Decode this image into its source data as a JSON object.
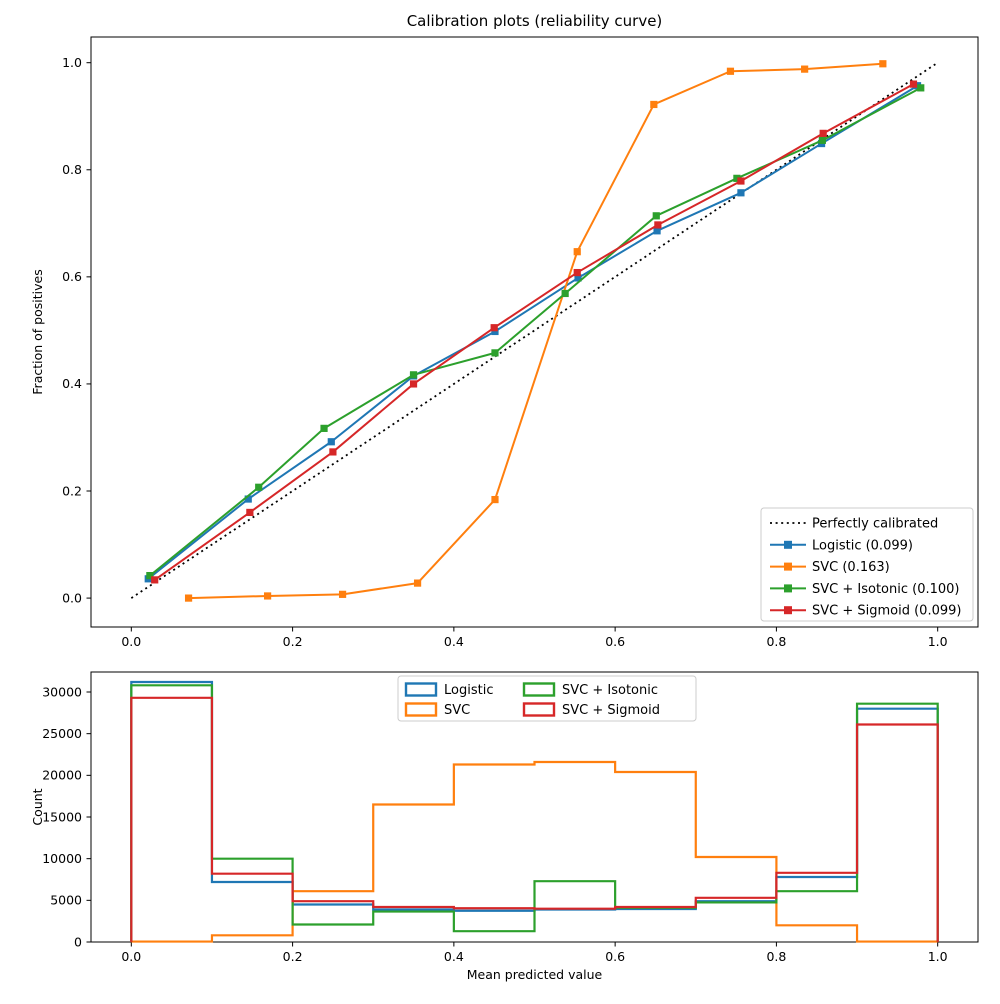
{
  "window": {
    "background": "#ffffff"
  },
  "chart_data": [
    {
      "id": "calibration-curve",
      "type": "line",
      "title": "Calibration plots  (reliability curve)",
      "xlabel": "",
      "ylabel": "Fraction of positives",
      "xlim": [
        -0.05,
        1.05
      ],
      "ylim": [
        -0.054,
        1.048
      ],
      "xticks": [
        0.0,
        0.2,
        0.4,
        0.6,
        0.8,
        1.0
      ],
      "xtick_labels": [
        "0.0",
        "0.2",
        "0.4",
        "0.6",
        "0.8",
        "1.0"
      ],
      "yticks": [
        0.0,
        0.2,
        0.4,
        0.6,
        0.8,
        1.0
      ],
      "ytick_labels": [
        "0.0",
        "0.2",
        "0.4",
        "0.6",
        "0.8",
        "1.0"
      ],
      "grid": false,
      "legend_position": "lower right",
      "reference": {
        "label": "Perfectly calibrated",
        "color": "#000000",
        "style": "dotted",
        "x": [
          0.0,
          1.0
        ],
        "y": [
          0.0,
          1.0
        ]
      },
      "series": [
        {
          "name": "Logistic (0.099)",
          "color": "#1f77b4",
          "marker": "square",
          "x": [
            0.021,
            0.145,
            0.248,
            0.35,
            0.451,
            0.554,
            0.652,
            0.756,
            0.856,
            0.975
          ],
          "y": [
            0.036,
            0.185,
            0.292,
            0.415,
            0.498,
            0.598,
            0.686,
            0.757,
            0.849,
            0.957
          ]
        },
        {
          "name": "SVC (0.163)",
          "color": "#ff7f0e",
          "marker": "square",
          "x": [
            0.071,
            0.169,
            0.262,
            0.355,
            0.451,
            0.553,
            0.648,
            0.743,
            0.835,
            0.932
          ],
          "y": [
            0.0,
            0.004,
            0.007,
            0.028,
            0.184,
            0.647,
            0.922,
            0.984,
            0.988,
            0.998
          ]
        },
        {
          "name": "SVC + Isotonic (0.100)",
          "color": "#2ca02c",
          "marker": "square",
          "x": [
            0.023,
            0.158,
            0.239,
            0.35,
            0.451,
            0.538,
            0.651,
            0.751,
            0.857,
            0.979
          ],
          "y": [
            0.042,
            0.207,
            0.317,
            0.417,
            0.458,
            0.569,
            0.714,
            0.784,
            0.855,
            0.953
          ]
        },
        {
          "name": "SVC + Sigmoid (0.099)",
          "color": "#d62728",
          "marker": "square",
          "x": [
            0.029,
            0.147,
            0.25,
            0.35,
            0.45,
            0.553,
            0.653,
            0.756,
            0.858,
            0.97
          ],
          "y": [
            0.034,
            0.16,
            0.273,
            0.4,
            0.505,
            0.608,
            0.697,
            0.779,
            0.868,
            0.96
          ]
        }
      ]
    },
    {
      "id": "predicted-value-histogram",
      "type": "bar",
      "style": "step-outline-histogram",
      "title": "",
      "xlabel": "Mean predicted value",
      "ylabel": "Count",
      "xlim": [
        -0.05,
        1.05
      ],
      "ylim": [
        0,
        32400
      ],
      "bin_edges": [
        0.0,
        0.1,
        0.2,
        0.3,
        0.4,
        0.5,
        0.6,
        0.7,
        0.8,
        0.9,
        1.0
      ],
      "xticks": [
        0.0,
        0.2,
        0.4,
        0.6,
        0.8,
        1.0
      ],
      "xtick_labels": [
        "0.0",
        "0.2",
        "0.4",
        "0.6",
        "0.8",
        "1.0"
      ],
      "yticks": [
        0,
        5000,
        10000,
        15000,
        20000,
        25000,
        30000
      ],
      "ytick_labels": [
        "0",
        "5000",
        "10000",
        "15000",
        "20000",
        "25000",
        "30000"
      ],
      "grid": false,
      "legend_position": "upper center",
      "legend_columns": 2,
      "series": [
        {
          "name": "Logistic",
          "color": "#1f77b4",
          "counts": [
            31200,
            7200,
            4500,
            3900,
            3750,
            3900,
            3950,
            4900,
            7800,
            28000
          ]
        },
        {
          "name": "SVC",
          "color": "#ff7f0e",
          "counts": [
            50,
            800,
            6100,
            16500,
            21300,
            21600,
            20400,
            10200,
            2000,
            50
          ]
        },
        {
          "name": "SVC + Isotonic",
          "color": "#2ca02c",
          "counts": [
            30800,
            10000,
            2100,
            3650,
            1300,
            7300,
            4100,
            4750,
            6100,
            28600
          ]
        },
        {
          "name": "SVC + Sigmoid",
          "color": "#d62728",
          "counts": [
            29300,
            8200,
            4900,
            4200,
            4050,
            4000,
            4200,
            5300,
            8300,
            26100
          ]
        }
      ]
    }
  ]
}
